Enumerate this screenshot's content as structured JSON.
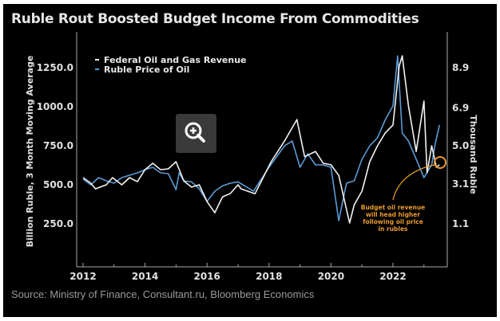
{
  "chart_data": {
    "type": "line",
    "title": "Ruble Rout Boosted Budget Income From Commodities",
    "source": "Source: Ministry of Finance, Consultant.ru, Bloomberg Economics",
    "ylabel": "Billion Ruble, 3 Month Moving Average",
    "ylabel_right": "Thousand Ruble",
    "xlim": [
      2011.8,
      2023.9
    ],
    "ylim": [
      0,
      1400
    ],
    "ylim_right": [
      -0.95,
      10.4
    ],
    "x_ticks": [
      "2012",
      "2014",
      "2016",
      "2018",
      "2020",
      "2022"
    ],
    "x_tick_values": [
      2012,
      2014,
      2016,
      2018,
      2020,
      2022
    ],
    "y_ticks": [
      "250.0",
      "500.0",
      "750.0",
      "1000.0",
      "1250.0"
    ],
    "y_tick_values": [
      250,
      500,
      750,
      1000,
      1250
    ],
    "y_ticks_right": [
      "1.1",
      "3.1",
      "5.0",
      "6.9",
      "8.9"
    ],
    "y_tick_values_right": [
      1.1,
      3.1,
      5.0,
      6.9,
      8.9
    ],
    "legend": [
      "Federal Oil and Gas Revenue",
      "Ruble Price of Oil"
    ],
    "legend_placement": "top-left",
    "series": [
      {
        "name": "Federal Oil and Gas Revenue",
        "axis": "left",
        "color": "#f2f2f2",
        "x": [
          2012,
          2012.25,
          2012.4,
          2012.75,
          2012.95,
          2013.25,
          2013.5,
          2013.75,
          2014,
          2014.25,
          2014.5,
          2014.75,
          2015,
          2015.25,
          2015.5,
          2015.75,
          2016,
          2016.25,
          2016.5,
          2016.75,
          2017,
          2017.1,
          2017.55,
          2018.07,
          2018.5,
          2018.9,
          2019.15,
          2019.5,
          2019.75,
          2020,
          2020.25,
          2020.6,
          2020.75,
          2021,
          2021.25,
          2021.5,
          2021.75,
          2022,
          2022.2,
          2022.3,
          2022.5,
          2022.75,
          2023,
          2023.1,
          2023.25,
          2023.4,
          2023.5
        ],
        "values": [
          546,
          510,
          474,
          500,
          546,
          500,
          546,
          520,
          597,
          638,
          597,
          602,
          648,
          525,
          485,
          500,
          393,
          321,
          423,
          444,
          500,
          474,
          443,
          648,
          780,
          918,
          680,
          714,
          638,
          628,
          560,
          255,
          372,
          459,
          648,
          750,
          832,
          883,
          1260,
          1326,
          1005,
          714,
          1036,
          577,
          750,
          612,
          628
        ]
      },
      {
        "name": "Ruble Price of Oil",
        "axis": "right",
        "color": "#5b9bd5",
        "x": [
          2012,
          2012.25,
          2012.5,
          2012.75,
          2013,
          2013.25,
          2013.5,
          2013.75,
          2014,
          2014.25,
          2014.5,
          2014.75,
          2015,
          2015.1,
          2015.25,
          2015.5,
          2015.75,
          2016,
          2016.25,
          2016.5,
          2016.75,
          2017,
          2017.5,
          2018,
          2018.5,
          2018.75,
          2019,
          2019.25,
          2019.5,
          2019.75,
          2020,
          2020.25,
          2020.5,
          2020.75,
          2021,
          2021.25,
          2021.5,
          2021.75,
          2022,
          2022.15,
          2022.3,
          2022.5,
          2022.75,
          2023,
          2023.25,
          2023.35,
          2023.5
        ],
        "values": [
          3.33,
          3.05,
          3.41,
          3.25,
          3.13,
          3.41,
          3.53,
          3.65,
          3.81,
          3.93,
          3.65,
          3.61,
          2.81,
          3.65,
          3.25,
          3.2,
          2.85,
          2.22,
          2.73,
          3.0,
          3.13,
          3.2,
          2.73,
          3.93,
          5.0,
          5.24,
          3.93,
          4.6,
          4.05,
          4.05,
          3.93,
          1.26,
          3.13,
          3.25,
          4.33,
          5.0,
          5.4,
          6.3,
          7.0,
          9.5,
          5.64,
          5.24,
          4.33,
          3.41,
          4.05,
          5.0,
          6.04
        ]
      }
    ],
    "annotation": {
      "lines": [
        "Budget oil revenue",
        "will head higher",
        "following oil price",
        "in rubles"
      ],
      "color": "#e89a2c"
    },
    "grid": false
  },
  "ui": {
    "zoom_icon": "zoom-in-icon"
  }
}
